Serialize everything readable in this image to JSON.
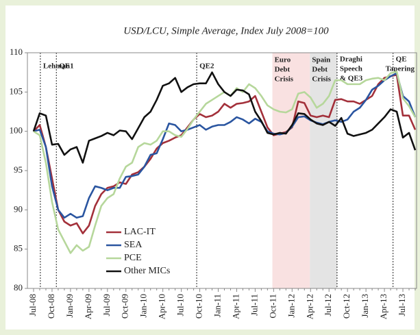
{
  "chart_data": {
    "type": "line",
    "subtitle": "USD/LCU, Simple Average, Index July 2008=100",
    "categories": [
      "Jul-08",
      null,
      null,
      "Oct-08",
      null,
      null,
      "Jan-09",
      null,
      null,
      "Apr-09",
      null,
      null,
      "Jul-09",
      null,
      null,
      "Oct-09",
      null,
      null,
      "Jan-10",
      null,
      null,
      "Apr-10",
      null,
      null,
      "Jul-10",
      null,
      null,
      "Oct-10",
      null,
      null,
      "Jan-11",
      null,
      null,
      "Apr-11",
      null,
      null,
      "Jul-11",
      null,
      null,
      "Oct-11",
      null,
      null,
      "Jan-12",
      null,
      null,
      "Apr-12",
      null,
      null,
      "Jul-12",
      null,
      null,
      "Oct-12",
      null,
      null,
      "Jan-13",
      null,
      null,
      "Apr-13",
      null,
      null,
      "Jul-13",
      null,
      null
    ],
    "series": [
      {
        "name": "LAC-IT",
        "color": "#a3303a",
        "values": [
          100,
          100.8,
          98,
          94,
          90,
          88.5,
          88,
          88.3,
          87,
          88,
          90.5,
          92,
          92.8,
          93,
          93.5,
          93.3,
          94.5,
          94.8,
          95.5,
          96.5,
          97.8,
          98.5,
          98.8,
          99.2,
          99.5,
          100.5,
          101.5,
          102.2,
          101.8,
          102,
          102.5,
          103.5,
          103,
          103.5,
          103.6,
          103.8,
          104.5,
          102.5,
          100.5,
          99.5,
          99.7,
          99.9,
          100.5,
          103.8,
          103.6,
          102,
          101.8,
          102,
          101.8,
          104,
          104.1,
          103.8,
          103.8,
          103.5,
          104,
          104.5,
          106,
          106.8,
          107,
          107.2,
          102,
          102,
          100.2
        ]
      },
      {
        "name": "SEA",
        "color": "#2a55a0",
        "values": [
          100,
          100.2,
          98,
          93,
          90,
          89,
          89.5,
          89,
          89.2,
          91.5,
          93,
          92.8,
          92.5,
          92.8,
          92.8,
          94.2,
          94.3,
          94.5,
          95.5,
          97,
          97.2,
          99,
          101,
          100.8,
          100,
          100.2,
          100.5,
          100.8,
          100.2,
          100.6,
          100.8,
          100.8,
          101.2,
          101.8,
          101.5,
          101,
          101.6,
          101.2,
          100,
          99.7,
          99.6,
          99.8,
          100.6,
          101.8,
          101.9,
          101.4,
          101.1,
          100.9,
          101.2,
          101.4,
          101.2,
          101.5,
          102.5,
          103,
          104,
          105.3,
          105.8,
          106.5,
          107,
          107.4,
          104.5,
          103.8,
          101.8
        ]
      },
      {
        "name": "PCE",
        "color": "#b6d79b",
        "values": [
          100,
          99.5,
          96,
          91,
          87.5,
          86,
          84.5,
          85.5,
          84.8,
          85.3,
          88,
          90.5,
          91.5,
          92,
          94,
          95.5,
          96,
          98,
          98.5,
          98.3,
          98.8,
          100,
          100,
          99.5,
          99.3,
          100.3,
          101.5,
          102.5,
          103.5,
          104,
          104.5,
          105,
          104.5,
          105.5,
          105,
          106,
          105.5,
          104.5,
          103.3,
          102.8,
          102.5,
          102.4,
          102.8,
          104.8,
          105,
          104.3,
          103,
          103.5,
          104.5,
          106.5,
          106.5,
          106,
          106,
          106,
          106.5,
          106.7,
          106.8,
          106.5,
          107.4,
          107.6,
          104.2,
          103.2,
          101.8
        ]
      },
      {
        "name": "Other MICs",
        "color": "#111111",
        "values": [
          100,
          102.3,
          102,
          98.3,
          98.4,
          97,
          97.7,
          98,
          96,
          98.8,
          99.1,
          99.4,
          99.8,
          99.5,
          100.1,
          100,
          99,
          100.4,
          101.8,
          102.5,
          104,
          105.8,
          106.1,
          106.8,
          105,
          105.6,
          106,
          106.1,
          106.1,
          107.5,
          106,
          105,
          104.5,
          105.3,
          105.2,
          104.7,
          102.5,
          101.3,
          99.8,
          99.6,
          99.8,
          99.7,
          100.8,
          102.3,
          102.2,
          101.5,
          101,
          100.8,
          101.2,
          100.7,
          101.7,
          99.7,
          99.4,
          99.6,
          99.8,
          100.2,
          101,
          101.8,
          102.8,
          102.5,
          99.2,
          99.8,
          97.6
        ]
      }
    ],
    "ylim": [
      80,
      110
    ],
    "yticks": [
      80,
      85,
      90,
      95,
      100,
      105,
      110
    ],
    "legend": "lower left",
    "events": [
      {
        "label": [
          "Lehman"
        ],
        "index": 1.1
      },
      {
        "label": [
          "QE1"
        ],
        "index": 3.7
      },
      {
        "label": [
          "QE2"
        ],
        "index": 26.5
      },
      {
        "label": [
          "Draghi",
          "Speech",
          "& QE3"
        ],
        "index": 49.3
      },
      {
        "label": [
          "QE",
          "Tapering"
        ],
        "index": 58.4
      }
    ],
    "spans": [
      {
        "label": [
          "Euro",
          "Debt",
          "Crisis"
        ],
        "start": 38.8,
        "end": 44.9,
        "color": "#f9e1e1"
      },
      {
        "label": [
          "Spain",
          "Debt",
          "Crisis"
        ],
        "start": 44.9,
        "end": 49.3,
        "color": "#e4e4e4"
      }
    ]
  }
}
